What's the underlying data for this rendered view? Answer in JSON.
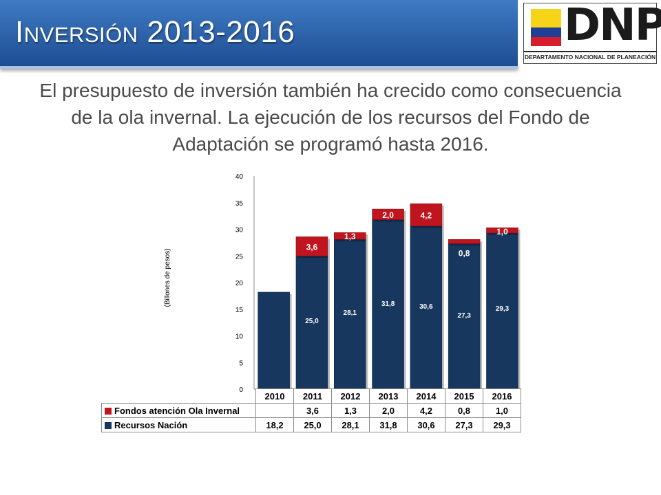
{
  "slide": {
    "title": "Inversión 2013-2016",
    "subtitle": "El presupuesto de inversión también ha crecido como consecuencia de la ola invernal. La ejecución de los recursos del Fondo de Adaptación se programó hasta 2016."
  },
  "logo": {
    "text": "DNP",
    "subtitle": "DEPARTAMENTO NACIONAL DE PLANEACIÓN"
  },
  "chart_data": {
    "type": "bar",
    "stacked": true,
    "ylabel": "(Billones de pesos)",
    "ylim": [
      0,
      40
    ],
    "yticks": [
      "0",
      "5",
      "10",
      "15",
      "20",
      "25",
      "30",
      "35",
      "40"
    ],
    "categories": [
      "2010",
      "2011",
      "2012",
      "2013",
      "2014",
      "2015",
      "2016"
    ],
    "series": [
      {
        "name": "Recursos Nación",
        "color": "#17375e",
        "values": [
          18.2,
          25.0,
          28.1,
          31.8,
          30.6,
          27.3,
          29.3
        ],
        "labels": [
          "",
          "25,0",
          "28,1",
          "31,8",
          "30,6",
          "27,3",
          "29,3"
        ]
      },
      {
        "name": "Fondos atención Ola Invernal",
        "color": "#c0141e",
        "values": [
          null,
          3.6,
          1.3,
          2.0,
          4.2,
          0.8,
          1.0
        ],
        "labels": [
          "",
          "3,6",
          "1,3",
          "2,0",
          "4,2",
          "0,8",
          "1,0"
        ]
      }
    ],
    "table": {
      "header": [
        "2010",
        "2011",
        "2012",
        "2013",
        "2014",
        "2015",
        "2016"
      ],
      "rows": [
        {
          "label": "Fondos atención Ola Invernal",
          "cells": [
            "",
            "3,6",
            "1,3",
            "2,0",
            "4,2",
            "0,8",
            "1,0"
          ]
        },
        {
          "label": "Recursos Nación",
          "cells": [
            "18,2",
            "25,0",
            "28,1",
            "31,8",
            "30,6",
            "27,3",
            "29,3"
          ]
        }
      ]
    },
    "grid": false,
    "legend": "data-table"
  }
}
